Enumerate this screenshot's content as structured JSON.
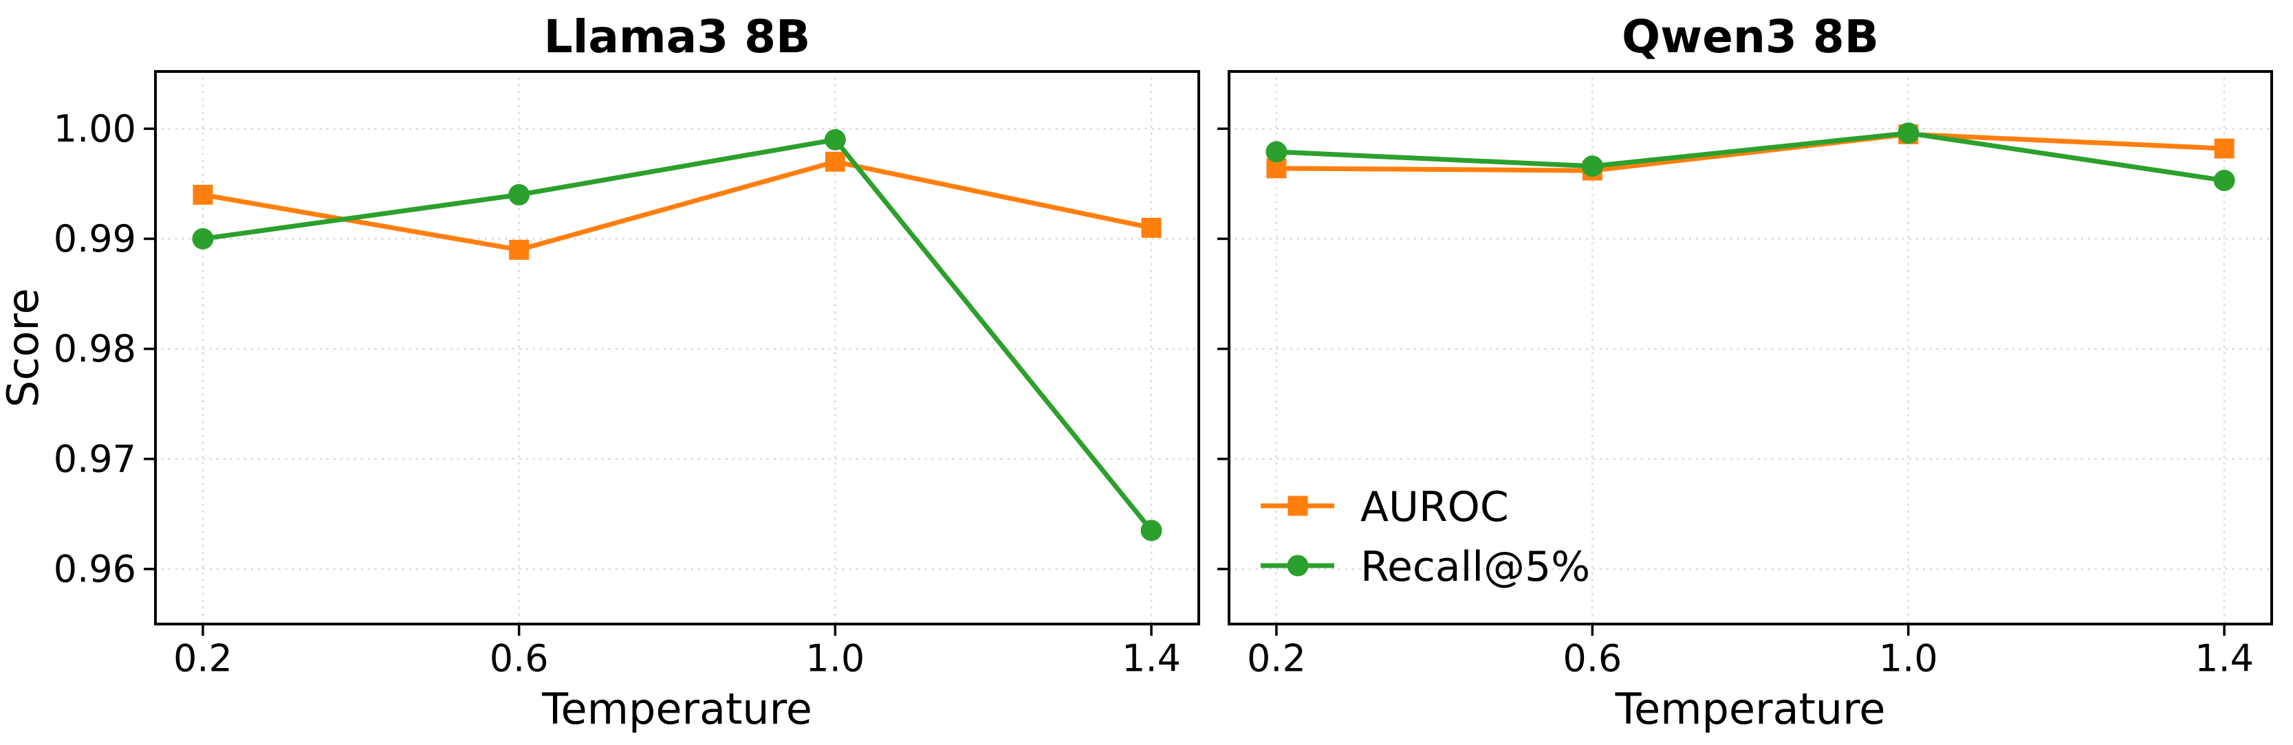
{
  "figure": {
    "background": "#ffffff",
    "axis_color": "#000000",
    "grid_color": "#dadada"
  },
  "chart_data": [
    {
      "type": "line",
      "title": "Llama3 8B",
      "xlabel": "Temperature",
      "ylabel": "Score",
      "x": [
        0.2,
        0.6,
        1.0,
        1.4
      ],
      "xtick_labels": [
        "0.2",
        "0.6",
        "1.0",
        "1.4"
      ],
      "ytick_values": [
        1.0,
        0.99,
        0.98,
        0.97,
        0.96
      ],
      "ytick_labels": [
        "1.00",
        "0.99",
        "0.98",
        "0.97",
        "0.96"
      ],
      "xlim": [
        0.14,
        1.46
      ],
      "ylim": [
        0.955,
        1.0052
      ],
      "grid": true,
      "show_ytick_labels": true,
      "show_ylabel": true,
      "legend": null,
      "series": [
        {
          "name": "AUROC",
          "marker": "square",
          "color": "#ff7f0e",
          "values": [
            0.994,
            0.989,
            0.997,
            0.991
          ]
        },
        {
          "name": "Recall@5%",
          "marker": "circle",
          "color": "#2ca02c",
          "values": [
            0.99,
            0.994,
            0.999,
            0.9635
          ]
        }
      ]
    },
    {
      "type": "line",
      "title": "Qwen3 8B",
      "xlabel": "Temperature",
      "ylabel": "Score",
      "x": [
        0.2,
        0.6,
        1.0,
        1.4
      ],
      "xtick_labels": [
        "0.2",
        "0.6",
        "1.0",
        "1.4"
      ],
      "ytick_values": [
        1.0,
        0.99,
        0.98,
        0.97,
        0.96
      ],
      "ytick_labels": [
        "1.00",
        "0.99",
        "0.98",
        "0.97",
        "0.96"
      ],
      "xlim": [
        0.14,
        1.46
      ],
      "ylim": [
        0.955,
        1.0052
      ],
      "grid": true,
      "show_ytick_labels": false,
      "show_ylabel": false,
      "legend": {
        "position": "lower left",
        "items": [
          "AUROC",
          "Recall@5%"
        ]
      },
      "series": [
        {
          "name": "AUROC",
          "marker": "square",
          "color": "#ff7f0e",
          "values": [
            0.9964,
            0.9962,
            0.9995,
            0.9982
          ]
        },
        {
          "name": "Recall@5%",
          "marker": "circle",
          "color": "#2ca02c",
          "values": [
            0.9979,
            0.9966,
            0.9996,
            0.9953
          ]
        }
      ]
    }
  ]
}
